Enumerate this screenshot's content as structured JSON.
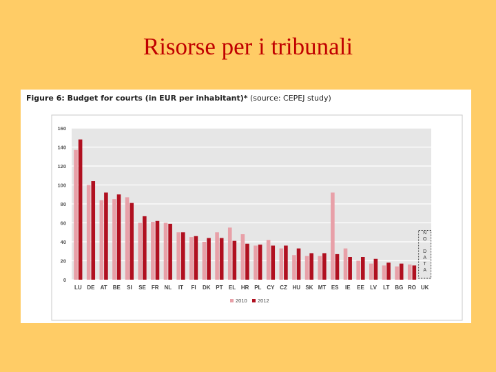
{
  "slide": {
    "title": "Risorse per i tribunali"
  },
  "figure": {
    "caption_bold": "Figure 6: Budget for courts (in EUR per inhabitant)*",
    "caption_rest": " (source: CEPEJ study)",
    "no_data_label": "NO DATA"
  },
  "colors": {
    "background": "#ffcc66",
    "title": "#c00000",
    "series_2010": "#e8a0a8",
    "series_2012": "#b01020",
    "plot_bg": "#e6e6e6"
  },
  "chart_data": {
    "type": "bar",
    "title": "Figure 6: Budget for courts (in EUR per inhabitant)*",
    "xlabel": "",
    "ylabel": "",
    "ylim": [
      0,
      160
    ],
    "yticks": [
      0,
      20,
      40,
      60,
      80,
      100,
      120,
      140,
      160
    ],
    "grid": true,
    "legend_position": "bottom-center",
    "categories": [
      "LU",
      "DE",
      "AT",
      "BE",
      "SI",
      "SE",
      "FR",
      "NL",
      "IT",
      "FI",
      "DK",
      "PT",
      "EL",
      "HR",
      "PL",
      "CY",
      "CZ",
      "HU",
      "SK",
      "MT",
      "ES",
      "IE",
      "EE",
      "LV",
      "LT",
      "BG",
      "RO",
      "UK"
    ],
    "series": [
      {
        "name": "2010",
        "color": "#e8a0a8",
        "values": [
          137,
          100,
          84,
          85,
          87,
          60,
          61,
          60,
          50,
          45,
          40,
          50,
          55,
          48,
          36,
          42,
          33,
          26,
          25,
          25,
          92,
          33,
          20,
          17,
          15,
          14,
          16,
          null
        ]
      },
      {
        "name": "2012",
        "color": "#b01020",
        "values": [
          148,
          104,
          92,
          90,
          81,
          67,
          62,
          59,
          50,
          46,
          44,
          44,
          41,
          38,
          37,
          36,
          36,
          33,
          28,
          28,
          27,
          24,
          24,
          22,
          18,
          17,
          15,
          null
        ]
      }
    ]
  }
}
